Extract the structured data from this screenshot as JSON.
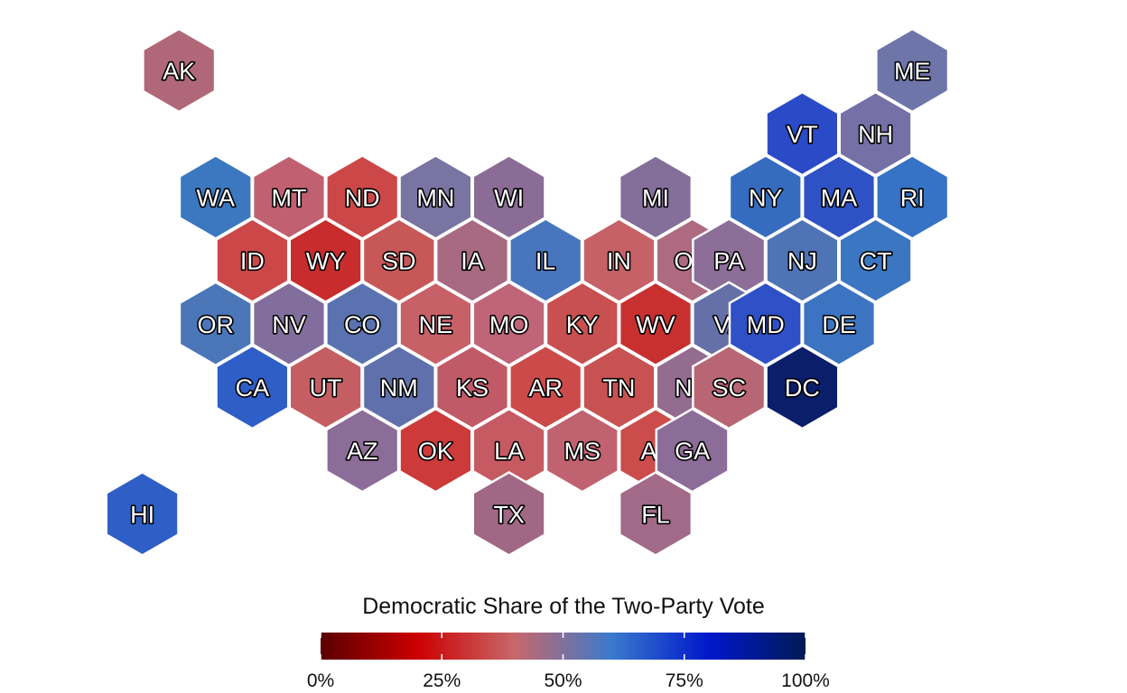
{
  "legend": {
    "title": "Democratic Share of the Two-Party Vote",
    "ticks": [
      {
        "value": 0,
        "label": "0%"
      },
      {
        "value": 0.25,
        "label": "25%"
      },
      {
        "value": 0.5,
        "label": "50%"
      },
      {
        "value": 0.75,
        "label": "75%"
      },
      {
        "value": 1,
        "label": "100%"
      }
    ],
    "gradient_colors": [
      "#5a0000",
      "#cc0000",
      "#c8676a",
      "#3a7acc",
      "#0018cc",
      "#001a55"
    ]
  },
  "states": [
    {
      "abbr": "AK",
      "col": 2,
      "row": 0,
      "color": "#b06878"
    },
    {
      "abbr": "ME",
      "col": 22,
      "row": 0,
      "color": "#6e75a8"
    },
    {
      "abbr": "VT",
      "col": 19,
      "row": 1,
      "color": "#2b4ac8"
    },
    {
      "abbr": "NH",
      "col": 21,
      "row": 1,
      "color": "#7570a6"
    },
    {
      "abbr": "WA",
      "col": 3,
      "row": 2,
      "color": "#3c78c0"
    },
    {
      "abbr": "MT",
      "col": 5,
      "row": 2,
      "color": "#c06070"
    },
    {
      "abbr": "ND",
      "col": 7,
      "row": 2,
      "color": "#cc4848"
    },
    {
      "abbr": "MN",
      "col": 9,
      "row": 2,
      "color": "#7a74a2"
    },
    {
      "abbr": "WI",
      "col": 11,
      "row": 2,
      "color": "#8a6c96"
    },
    {
      "abbr": "MI",
      "col": 15,
      "row": 2,
      "color": "#846e9a"
    },
    {
      "abbr": "NY",
      "col": 18,
      "row": 2,
      "color": "#356cc0"
    },
    {
      "abbr": "MA",
      "col": 20,
      "row": 2,
      "color": "#2e52c6"
    },
    {
      "abbr": "RI",
      "col": 22,
      "row": 2,
      "color": "#3672c6"
    },
    {
      "abbr": "ID",
      "col": 4,
      "row": 3,
      "color": "#cc4848"
    },
    {
      "abbr": "WY",
      "col": 6,
      "row": 3,
      "color": "#c82c2c"
    },
    {
      "abbr": "SD",
      "col": 8,
      "row": 3,
      "color": "#c85858"
    },
    {
      "abbr": "IA",
      "col": 10,
      "row": 3,
      "color": "#a86a80"
    },
    {
      "abbr": "IL",
      "col": 12,
      "row": 3,
      "color": "#4876be"
    },
    {
      "abbr": "IN",
      "col": 14,
      "row": 3,
      "color": "#c66168"
    },
    {
      "abbr": "OH",
      "col": 16,
      "row": 3,
      "color": "#ae6a80"
    },
    {
      "abbr": "PA",
      "col": 17,
      "row": 3,
      "color": "#8c6e98"
    },
    {
      "abbr": "NJ",
      "col": 19,
      "row": 3,
      "color": "#4e74b6"
    },
    {
      "abbr": "CT",
      "col": 21,
      "row": 3,
      "color": "#3a76c2"
    },
    {
      "abbr": "OR",
      "col": 3,
      "row": 4,
      "color": "#4b76b8"
    },
    {
      "abbr": "NV",
      "col": 5,
      "row": 4,
      "color": "#826e9c"
    },
    {
      "abbr": "CO",
      "col": 7,
      "row": 4,
      "color": "#5b72b0"
    },
    {
      "abbr": "NE",
      "col": 9,
      "row": 4,
      "color": "#c86068"
    },
    {
      "abbr": "MO",
      "col": 11,
      "row": 4,
      "color": "#c06478"
    },
    {
      "abbr": "KY",
      "col": 13,
      "row": 4,
      "color": "#c85050"
    },
    {
      "abbr": "WV",
      "col": 15,
      "row": 4,
      "color": "#c83030"
    },
    {
      "abbr": "VA",
      "col": 17,
      "row": 4,
      "color": "#6670a8"
    },
    {
      "abbr": "MD",
      "col": 18,
      "row": 4,
      "color": "#2f50c6"
    },
    {
      "abbr": "DE",
      "col": 20,
      "row": 4,
      "color": "#3d74c2"
    },
    {
      "abbr": "CA",
      "col": 4,
      "row": 5,
      "color": "#2e5ec6"
    },
    {
      "abbr": "UT",
      "col": 6,
      "row": 5,
      "color": "#c45e62"
    },
    {
      "abbr": "NM",
      "col": 8,
      "row": 5,
      "color": "#6070ac"
    },
    {
      "abbr": "KS",
      "col": 10,
      "row": 5,
      "color": "#c05a66"
    },
    {
      "abbr": "AR",
      "col": 12,
      "row": 5,
      "color": "#cc4a4a"
    },
    {
      "abbr": "TN",
      "col": 14,
      "row": 5,
      "color": "#c85252"
    },
    {
      "abbr": "NC",
      "col": 16,
      "row": 5,
      "color": "#946c90"
    },
    {
      "abbr": "SC",
      "col": 17,
      "row": 5,
      "color": "#b86674"
    },
    {
      "abbr": "DC",
      "col": 19,
      "row": 5,
      "color": "#0a1e6a"
    },
    {
      "abbr": "AZ",
      "col": 7,
      "row": 6,
      "color": "#8c6c98"
    },
    {
      "abbr": "OK",
      "col": 9,
      "row": 6,
      "color": "#cc3a3a"
    },
    {
      "abbr": "LA",
      "col": 11,
      "row": 6,
      "color": "#c65a62"
    },
    {
      "abbr": "MS",
      "col": 13,
      "row": 6,
      "color": "#c06270"
    },
    {
      "abbr": "AL",
      "col": 15,
      "row": 6,
      "color": "#cc4c4c"
    },
    {
      "abbr": "GA",
      "col": 16,
      "row": 6,
      "color": "#8c6c98"
    },
    {
      "abbr": "HI",
      "col": 1,
      "row": 7,
      "color": "#2e5ec6"
    },
    {
      "abbr": "TX",
      "col": 11,
      "row": 7,
      "color": "#a06884"
    },
    {
      "abbr": "FL",
      "col": 15,
      "row": 7,
      "color": "#a06a88"
    }
  ]
}
